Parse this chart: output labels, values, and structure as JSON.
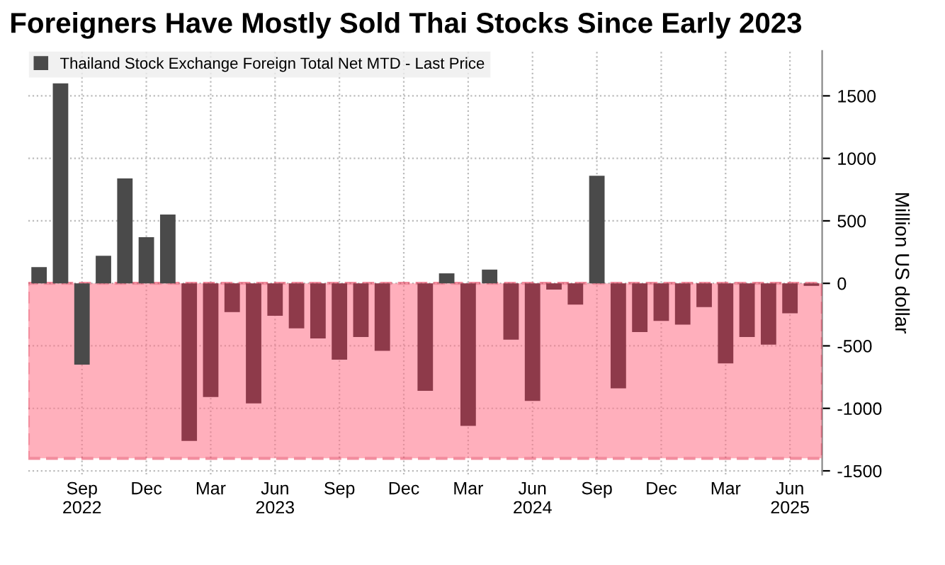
{
  "chart_data": {
    "type": "bar",
    "title": "Foreigners Have Mostly Sold Thai Stocks Since Early 2023",
    "ylabel": "Million US dollar",
    "categories": [
      null,
      null,
      "Sep\n2022",
      null,
      null,
      "Dec",
      null,
      null,
      "Mar",
      null,
      null,
      "Jun\n2023",
      null,
      null,
      "Sep",
      null,
      null,
      "Dec",
      null,
      null,
      "Mar",
      null,
      null,
      "Jun\n2024",
      null,
      null,
      "Sep",
      null,
      null,
      "Dec",
      null,
      null,
      "Mar",
      null,
      null,
      "Jun\n2025",
      null
    ],
    "series": [
      {
        "name": "Thailand Stock Exchange Foreign Total Net MTD - Last Price",
        "color": "#4a4a4a",
        "colors": [
          "#4a4a4a",
          "#4a4a4a",
          "#4a4a4a",
          "#4a4a4a",
          "#4a4a4a",
          "#4a4a4a",
          "#4a4a4a",
          "#8e3a4a",
          "#8e3a4a",
          "#8e3a4a",
          "#8e3a4a",
          "#8e3a4a",
          "#8e3a4a",
          "#8e3a4a",
          "#8e3a4a",
          "#8e3a4a",
          "#8e3a4a",
          "#8e3a4a",
          "#8e3a4a",
          "#4a4a4a",
          "#8e3a4a",
          "#4a4a4a",
          "#8e3a4a",
          "#8e3a4a",
          "#8e3a4a",
          "#8e3a4a",
          "#4a4a4a",
          "#8e3a4a",
          "#8e3a4a",
          "#8e3a4a",
          "#8e3a4a",
          "#8e3a4a",
          "#8e3a4a",
          "#8e3a4a",
          "#8e3a4a",
          "#8e3a4a",
          "#8e3a4a"
        ],
        "values": [
          130,
          1600,
          -650,
          220,
          840,
          370,
          550,
          -1260,
          -910,
          -230,
          -960,
          -260,
          -360,
          -440,
          -610,
          -430,
          -540,
          0,
          -860,
          80,
          -1140,
          110,
          -450,
          -940,
          -50,
          -170,
          860,
          -840,
          -390,
          -300,
          -330,
          -190,
          -640,
          -430,
          -490,
          -240,
          -20
        ]
      }
    ],
    "ylim": [
      -1530,
      1860
    ],
    "yticks": [
      -1500,
      -1000,
      -500,
      0,
      500,
      1000,
      1500
    ],
    "bands": [
      {
        "axis": "y",
        "from": -1400,
        "to": 0,
        "color": "#ff6f86"
      }
    ],
    "grid": true,
    "legend": "top left"
  }
}
